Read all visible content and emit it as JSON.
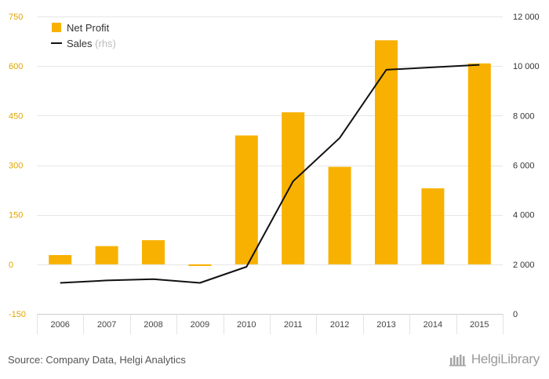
{
  "chart_data": {
    "type": "bar+line",
    "categories": [
      "2006",
      "2007",
      "2008",
      "2009",
      "2010",
      "2011",
      "2012",
      "2013",
      "2014",
      "2015"
    ],
    "series": [
      {
        "name": "Net Profit",
        "type": "bar",
        "axis": "left",
        "color": "#F8B100",
        "values": [
          28,
          55,
          73,
          -5,
          390,
          460,
          295,
          678,
          230,
          608
        ]
      },
      {
        "name": "Sales",
        "name_suffix": "(rhs)",
        "type": "line",
        "axis": "right",
        "color": "#111111",
        "values": [
          1250,
          1350,
          1400,
          1250,
          1900,
          5350,
          7100,
          9850,
          9950,
          10050
        ]
      }
    ],
    "y_left": {
      "ylim": [
        -150,
        750
      ],
      "ticks": [
        "750",
        "600",
        "450",
        "300",
        "150",
        "0",
        "-150"
      ],
      "tick_values": [
        750,
        600,
        450,
        300,
        150,
        0,
        -150
      ],
      "tick_color": "#E0A400"
    },
    "y_right": {
      "ylim": [
        0,
        12000
      ],
      "ticks": [
        "12 000",
        "10 000",
        "8 000",
        "6 000",
        "4 000",
        "2 000",
        "0"
      ],
      "tick_values": [
        12000,
        10000,
        8000,
        6000,
        4000,
        2000,
        0
      ]
    },
    "grid": true,
    "legend_position": "top-left"
  },
  "footer": {
    "source": "Source: Company Data, Helgi Analytics",
    "brand": "HelgiLibrary"
  },
  "colors": {
    "bar": "#F8B100",
    "line": "#111111",
    "grid": "#E6E6E6",
    "rhs_note": "#BBBBBB"
  }
}
